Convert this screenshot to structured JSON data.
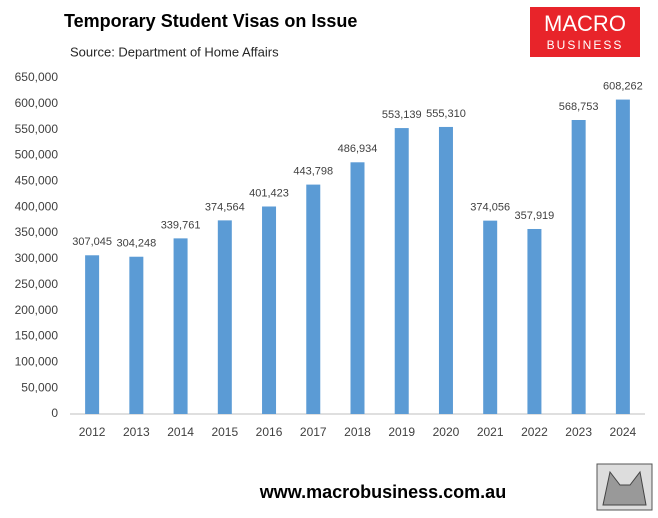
{
  "chart_data": {
    "type": "bar",
    "title": "Temporary Student Visas on Issue",
    "subtitle": "Source: Department of Home Affairs",
    "logo_text": [
      "MACRO",
      "BUSINESS"
    ],
    "footer": "www.macrobusiness.com.au",
    "categories": [
      "2012",
      "2013",
      "2014",
      "2015",
      "2016",
      "2017",
      "2018",
      "2019",
      "2020",
      "2021",
      "2022",
      "2023",
      "2024"
    ],
    "values": [
      307045,
      304248,
      339761,
      374564,
      401423,
      443798,
      486934,
      553139,
      555310,
      374056,
      357919,
      568753,
      608262
    ],
    "value_labels": [
      "307,045",
      "304,248",
      "339,761",
      "374,564",
      "401,423",
      "443,798",
      "486,934",
      "553,139",
      "555,310",
      "374,056",
      "357,919",
      "568,753",
      "608,262"
    ],
    "color": "#5b9bd5",
    "ylim": [
      0,
      650000
    ],
    "yticks": [
      0,
      {
        "value": 50000,
        "label": "50,000"
      },
      {
        "value": 100000,
        "label": "100,000"
      },
      {
        "value": 150000,
        "label": "150,000"
      },
      {
        "value": 200000,
        "label": "200,000"
      },
      {
        "value": 250000,
        "label": "250,000"
      },
      {
        "value": 300000,
        "label": "300,000"
      },
      {
        "value": 350000,
        "label": "350,000"
      },
      {
        "value": 400000,
        "label": "400,000"
      },
      {
        "value": 450000,
        "label": "450,000"
      },
      {
        "value": 500000,
        "label": "500,000"
      },
      {
        "value": 550000,
        "label": "550,000"
      },
      {
        "value": 600000,
        "label": "600,000"
      },
      {
        "value": 650000,
        "label": "650,000"
      }
    ],
    "grid": false
  }
}
